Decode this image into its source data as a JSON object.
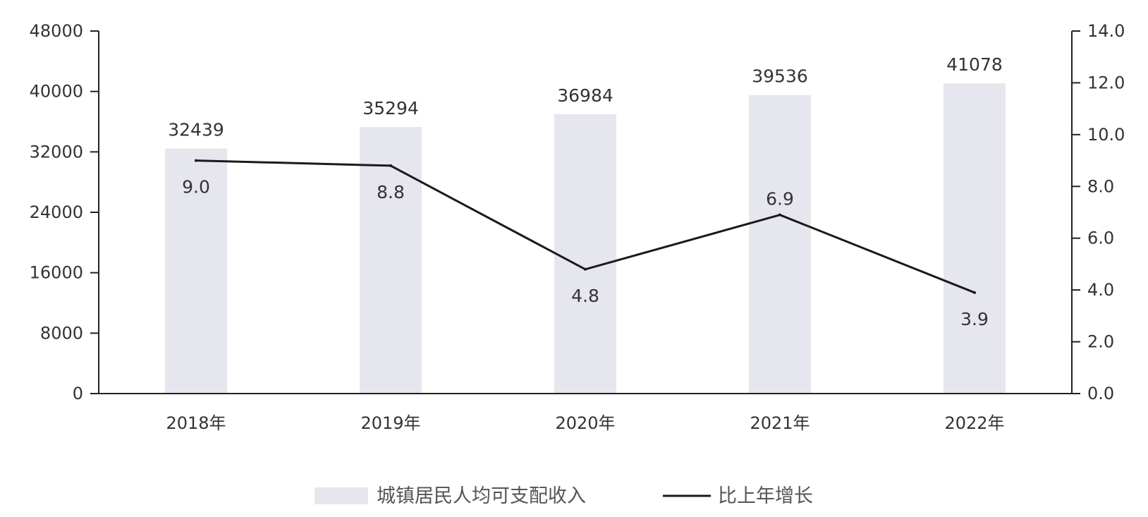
{
  "chart_data": {
    "type": "bar",
    "title": "",
    "categories": [
      "2018年",
      "2019年",
      "2020年",
      "2021年",
      "2022年"
    ],
    "y_left": {
      "ylim": [
        0,
        48000
      ],
      "ticks": [
        "0",
        "8000",
        "16000",
        "24000",
        "32000",
        "40000",
        "48000"
      ]
    },
    "y_right": {
      "ylim": [
        0,
        14
      ],
      "ticks": [
        "0.0",
        "2.0",
        "4.0",
        "6.0",
        "8.0",
        "10.0",
        "12.0",
        "14.0"
      ]
    },
    "series": [
      {
        "name": "城镇居民人均可支配收入",
        "type": "bar",
        "axis": "left",
        "color": "#e6e6ee",
        "values": [
          32439,
          35294,
          36984,
          39536,
          41078
        ],
        "labels": [
          "32439",
          "35294",
          "36984",
          "39536",
          "41078"
        ]
      },
      {
        "name": "比上年增长",
        "type": "line",
        "axis": "right",
        "color": "#1a1a1a",
        "values": [
          9.0,
          8.8,
          4.8,
          6.9,
          3.9
        ],
        "labels": [
          "9.0",
          "8.8",
          "4.8",
          "6.9",
          "3.9"
        ]
      }
    ],
    "grid": false,
    "legend_position": "bottom-center"
  }
}
